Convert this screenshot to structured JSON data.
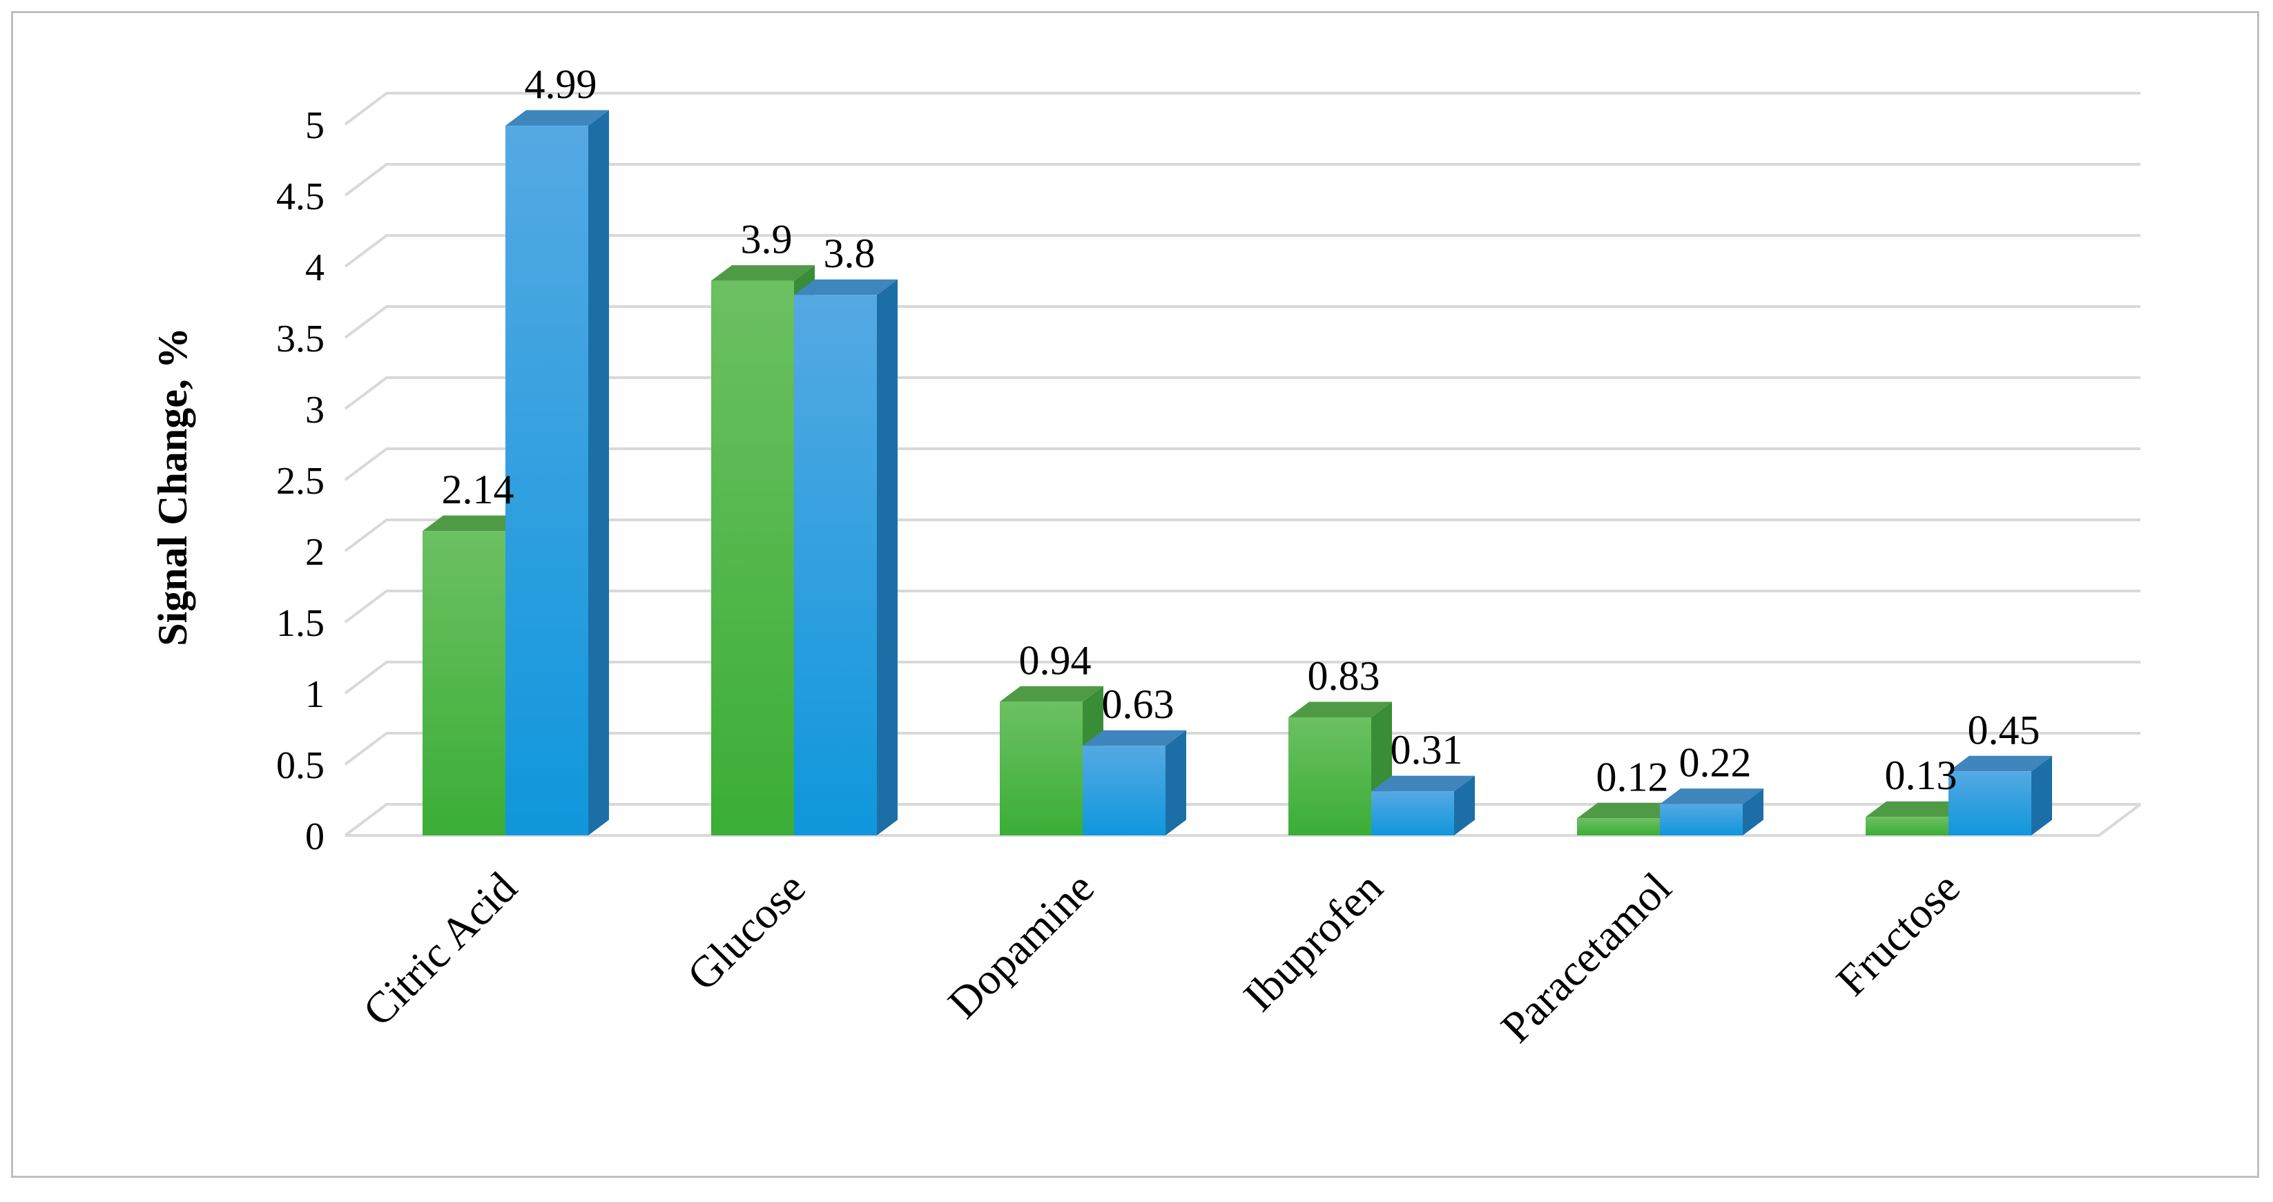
{
  "chart_data": {
    "type": "bar",
    "ylabel": "Signal Change, %",
    "xlabel": "",
    "ylim": [
      0,
      5
    ],
    "yticks": [
      0,
      0.5,
      1,
      1.5,
      2,
      2.5,
      3,
      3.5,
      4,
      4.5,
      5
    ],
    "ytick_labels": [
      "0",
      "0.5",
      "1",
      "1.5",
      "2",
      "2.5",
      "3",
      "3.5",
      "4",
      "4.5",
      "5"
    ],
    "grid": true,
    "legend": "none",
    "categories": [
      "Citric Acid",
      "Glucose",
      "Dopamine",
      "Ibuprofen",
      "Paracetamol",
      "Fructose"
    ],
    "series": [
      {
        "values": [
          2.14,
          3.9,
          0.94,
          0.83,
          0.12,
          0.13
        ],
        "labels": [
          "2.14",
          "3.9",
          "0.94",
          "0.83",
          "0.12",
          "0.13"
        ],
        "color": "#4cb84a"
      },
      {
        "values": [
          4.99,
          3.8,
          0.63,
          0.31,
          0.22,
          0.45
        ],
        "labels": [
          "4.99",
          "3.8",
          "0.63",
          "0.31",
          "0.22",
          "0.45"
        ],
        "color": "#2f9fe0"
      }
    ]
  }
}
